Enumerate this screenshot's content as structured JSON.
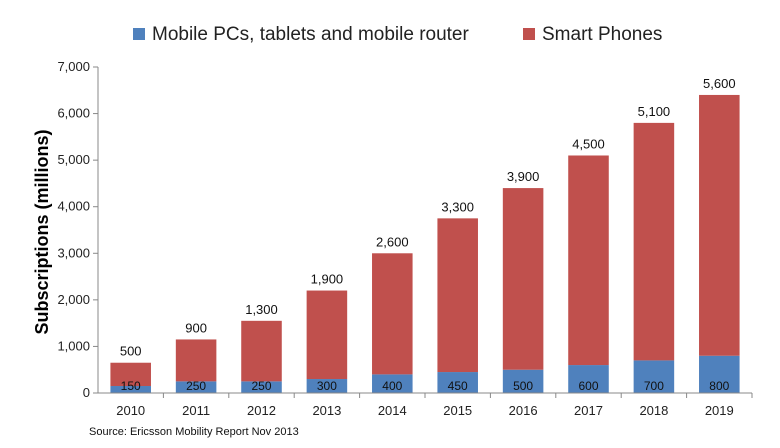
{
  "chart_data": {
    "type": "bar",
    "stacked": true,
    "categories": [
      "2010",
      "2011",
      "2012",
      "2013",
      "2014",
      "2015",
      "2016",
      "2017",
      "2018",
      "2019"
    ],
    "series": [
      {
        "name": "Mobile PCs, tablets and mobile router",
        "color": "#4f81bd",
        "values": [
          150,
          250,
          250,
          300,
          400,
          450,
          500,
          600,
          700,
          800
        ],
        "labels": [
          "150",
          "250",
          "250",
          "300",
          "400",
          "450",
          "500",
          "600",
          "700",
          "800"
        ]
      },
      {
        "name": "Smart Phones",
        "color": "#c0504d",
        "values": [
          500,
          900,
          1300,
          1900,
          2600,
          3300,
          3900,
          4500,
          5100,
          5600
        ],
        "labels": [
          "500",
          "900",
          "1,300",
          "1,900",
          "2,600",
          "3,300",
          "3,900",
          "4,500",
          "5,100",
          "5,600"
        ]
      }
    ],
    "ylabel": "Subscriptions (millions)",
    "ylim": [
      0,
      7000
    ],
    "yticks": [
      0,
      1000,
      2000,
      3000,
      4000,
      5000,
      6000,
      7000
    ],
    "ytick_labels": [
      "0",
      "1,000",
      "2,000",
      "3,000",
      "4,000",
      "5,000",
      "6,000",
      "7,000"
    ],
    "grid": false,
    "legend_position": "top"
  },
  "source": "Source:  Ericsson Mobility Report Nov 2013"
}
